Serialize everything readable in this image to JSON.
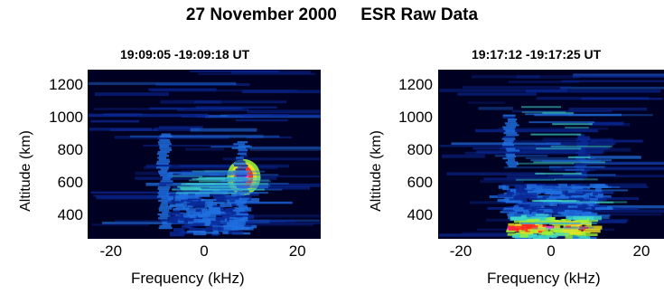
{
  "header": {
    "date": "27 November 2000",
    "title": "ESR Raw Data"
  },
  "chart_data": [
    {
      "type": "heatmap",
      "title": "19:09:05 -19:09:18 UT",
      "xlabel": "Frequency (kHz)",
      "ylabel": "Altitude (km)",
      "xlim": [
        -25,
        25
      ],
      "ylim": [
        260,
        1300
      ],
      "xticks": [
        -20,
        0,
        20
      ],
      "yticks": [
        400,
        600,
        800,
        1000,
        1200
      ],
      "colormap": [
        "#000022",
        "#0a2a9a",
        "#1f6fe0",
        "#3fd6c8",
        "#9cf03a",
        "#f0e020",
        "#ff2020",
        "#ff40d0"
      ],
      "features": [
        {
          "name": "left-edge",
          "x": -8.5,
          "alt_range": [
            320,
            900
          ],
          "intensity": 0.55
        },
        {
          "name": "center-band",
          "x_range": [
            -8,
            8
          ],
          "alt_range": [
            300,
            560
          ],
          "intensity": 0.35
        },
        {
          "name": "right-enhancement",
          "x": 8.5,
          "alt_range": [
            540,
            720
          ],
          "peak_alt": 640,
          "intensity": 1.0
        },
        {
          "name": "right-edge",
          "x": 8,
          "alt_range": [
            320,
            850
          ],
          "intensity": 0.5
        },
        {
          "name": "horizontal-streaks",
          "alt_range": [
            540,
            680
          ],
          "intensity": 0.25
        }
      ]
    },
    {
      "type": "heatmap",
      "title": "19:17:12 -19:17:25 UT",
      "xlabel": "Frequency (kHz)",
      "ylabel": "Altitude (km)",
      "xlim": [
        -25,
        25
      ],
      "ylim": [
        260,
        1300
      ],
      "xticks": [
        -20,
        0,
        20
      ],
      "yticks": [
        400,
        600,
        800,
        1000,
        1200
      ],
      "colormap": [
        "#000022",
        "#0a2a9a",
        "#1f6fe0",
        "#3fd6c8",
        "#9cf03a",
        "#f0e020",
        "#ff2020",
        "#ff40d0"
      ],
      "features": [
        {
          "name": "left-edge",
          "x": -9,
          "alt_range": [
            700,
            1020
          ],
          "intensity": 0.55
        },
        {
          "name": "right-edge",
          "x": 7,
          "alt_range": [
            650,
            900
          ],
          "intensity": 0.35
        },
        {
          "name": "bottom-enhancement",
          "x_range": [
            -10,
            8
          ],
          "alt_range": [
            270,
            460
          ],
          "peak_alt": 340,
          "intensity": 1.0
        },
        {
          "name": "lower-band",
          "x_range": [
            -12,
            10
          ],
          "alt_range": [
            430,
            600
          ],
          "intensity": 0.3
        },
        {
          "name": "horizontal-streaks",
          "alt_range": [
            300,
            1100
          ],
          "intensity": 0.2
        }
      ]
    }
  ]
}
